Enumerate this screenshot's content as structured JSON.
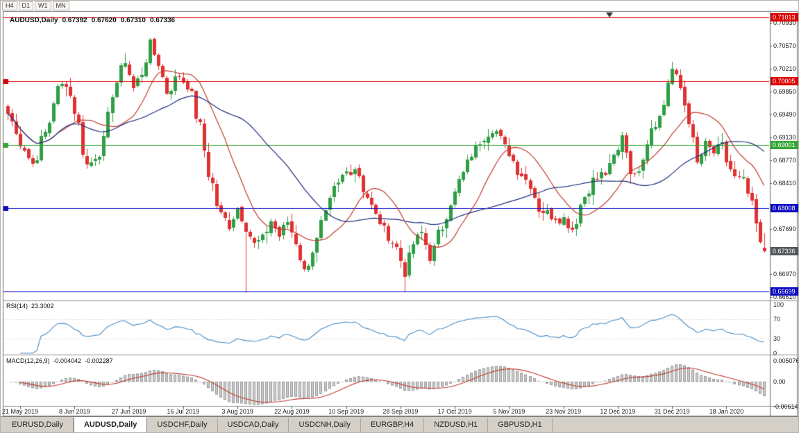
{
  "toolbar": {
    "timeframes": [
      "H4",
      "D1",
      "W1",
      "MN"
    ]
  },
  "chart": {
    "title": "AUDUSD,Daily",
    "ohlc": {
      "open": "0.67392",
      "high": "0.67620",
      "low": "0.67310",
      "close": "0.67336"
    },
    "price_axis": {
      "ticks": [
        "0.70930",
        "0.70570",
        "0.70210",
        "0.69850",
        "0.69490",
        "0.69130",
        "0.68770",
        "0.68410",
        "0.67690",
        "0.66970",
        "0.66610"
      ],
      "top_price": 0.7108,
      "bottom_price": 0.6656
    },
    "hlines": [
      {
        "price": 0.71013,
        "label": "0.71013",
        "color": "#dd0000",
        "handle": false
      },
      {
        "price": 0.70005,
        "label": "0.70005",
        "color": "#dd0000",
        "handle": true
      },
      {
        "price": 0.69001,
        "label": "0.69001",
        "color": "#35a635",
        "handle": true
      },
      {
        "price": 0.68008,
        "label": "0.68008",
        "color": "#0a0ac0",
        "handle": true
      },
      {
        "price": 0.66699,
        "label": "0.66699",
        "color": "#0a0ac0",
        "handle": false
      }
    ],
    "current_price": {
      "label": "0.67336",
      "value": 0.67336,
      "box_color": "#53565c"
    }
  },
  "chart_data": {
    "type": "candlestick",
    "symbol": "AUDUSD",
    "timeframe": "Daily",
    "candles_count": 182,
    "up_color": "#2f9e44",
    "down_color": "#e03131",
    "x_labels": [
      {
        "index": 3,
        "label": "21 May 2019"
      },
      {
        "index": 16,
        "label": "8 Jun 2019"
      },
      {
        "index": 29,
        "label": "27 Jun 2019"
      },
      {
        "index": 42,
        "label": "16 Jul 2019"
      },
      {
        "index": 55,
        "label": "3 Aug 2019"
      },
      {
        "index": 68,
        "label": "22 Aug 2019"
      },
      {
        "index": 81,
        "label": "10 Sep 2019"
      },
      {
        "index": 94,
        "label": "28 Sep 2019"
      },
      {
        "index": 107,
        "label": "17 Oct 2019"
      },
      {
        "index": 120,
        "label": "5 Nov 2019"
      },
      {
        "index": 133,
        "label": "23 Nov 2019"
      },
      {
        "index": 146,
        "label": "12 Dec 2019"
      },
      {
        "index": 159,
        "label": "31 Dec 2019"
      },
      {
        "index": 172,
        "label": "18 Jan 2020"
      }
    ],
    "close_path_anchors": [
      [
        0,
        0.695
      ],
      [
        3,
        0.6905
      ],
      [
        6,
        0.6872
      ],
      [
        9,
        0.692
      ],
      [
        12,
        0.6988
      ],
      [
        14,
        0.7
      ],
      [
        16,
        0.6955
      ],
      [
        19,
        0.6868
      ],
      [
        22,
        0.689
      ],
      [
        26,
        0.7
      ],
      [
        28,
        0.7035
      ],
      [
        30,
        0.699
      ],
      [
        32,
        0.7015
      ],
      [
        34,
        0.7058
      ],
      [
        36,
        0.703
      ],
      [
        38,
        0.6985
      ],
      [
        41,
        0.701
      ],
      [
        43,
        0.6995
      ],
      [
        46,
        0.693
      ],
      [
        48,
        0.6855
      ],
      [
        51,
        0.679
      ],
      [
        53,
        0.6775
      ],
      [
        55,
        0.6802
      ],
      [
        57,
        0.6772
      ],
      [
        59,
        0.6744
      ],
      [
        61,
        0.6752
      ],
      [
        63,
        0.6782
      ],
      [
        65,
        0.6757
      ],
      [
        67,
        0.678
      ],
      [
        69,
        0.6748
      ],
      [
        71,
        0.67
      ],
      [
        73,
        0.6735
      ],
      [
        76,
        0.679
      ],
      [
        78,
        0.683
      ],
      [
        81,
        0.6858
      ],
      [
        83,
        0.6866
      ],
      [
        86,
        0.682
      ],
      [
        88,
        0.6788
      ],
      [
        91,
        0.6758
      ],
      [
        93,
        0.6738
      ],
      [
        95,
        0.67
      ],
      [
        97,
        0.6745
      ],
      [
        99,
        0.6762
      ],
      [
        101,
        0.6725
      ],
      [
        104,
        0.6772
      ],
      [
        106,
        0.6812
      ],
      [
        109,
        0.6855
      ],
      [
        111,
        0.6887
      ],
      [
        114,
        0.6915
      ],
      [
        116,
        0.6928
      ],
      [
        120,
        0.689
      ],
      [
        122,
        0.6862
      ],
      [
        125,
        0.684
      ],
      [
        127,
        0.68
      ],
      [
        130,
        0.679
      ],
      [
        133,
        0.6785
      ],
      [
        135,
        0.677
      ],
      [
        138,
        0.682
      ],
      [
        140,
        0.6845
      ],
      [
        143,
        0.6856
      ],
      [
        146,
        0.689
      ],
      [
        147,
        0.692
      ],
      [
        149,
        0.6862
      ],
      [
        150,
        0.6848
      ],
      [
        152,
        0.6885
      ],
      [
        154,
        0.693
      ],
      [
        156,
        0.6945
      ],
      [
        159,
        0.702
      ],
      [
        161,
        0.699
      ],
      [
        163,
        0.694
      ],
      [
        165,
        0.687
      ],
      [
        167,
        0.69
      ],
      [
        169,
        0.6888
      ],
      [
        171,
        0.6898
      ],
      [
        172,
        0.6875
      ],
      [
        174,
        0.6848
      ],
      [
        176,
        0.6843
      ],
      [
        178,
        0.6805
      ],
      [
        179,
        0.6775
      ],
      [
        180,
        0.6742
      ],
      [
        181,
        0.67336
      ]
    ],
    "wick_overrides": [
      {
        "index": 28,
        "high": 0.7045
      },
      {
        "index": 34,
        "high": 0.7069
      },
      {
        "index": 57,
        "low": 0.6668
      },
      {
        "index": 95,
        "low": 0.66705
      },
      {
        "index": 159,
        "high": 0.7032
      }
    ],
    "last_candle": {
      "open": 0.67392,
      "high": 0.6762,
      "low": 0.6731,
      "close": 0.67336
    },
    "noise_seed": 7,
    "noise_amplitude": 0.0018,
    "overlays": [
      {
        "name": "ma-fast",
        "type": "sma",
        "period": 13,
        "color": "#c03a2b"
      },
      {
        "name": "ma-slow",
        "type": "sma",
        "period": 34,
        "color": "#1d2b7d"
      }
    ]
  },
  "rsi": {
    "name": "RSI(14)",
    "value_text": "23.3002",
    "period": 14,
    "levels": [
      "100",
      "70",
      "30",
      "0"
    ],
    "line_color": "#4a8bc2"
  },
  "macd": {
    "name": "MACD(12,26,9)",
    "main_text": "-0.004042",
    "signal_text": "-0.002287",
    "main_value": -0.004042,
    "signal_value": -0.002287,
    "scale_labels": [
      "0.005076",
      "0.00",
      "-0.006148"
    ],
    "histogram_color": "#cccccc",
    "histogram_border": "#979797",
    "signal_color": "#c03a2b"
  },
  "tabs": {
    "items": [
      {
        "label": "EURUSD,Daily",
        "active": false
      },
      {
        "label": "AUDUSD,Daily",
        "active": true
      },
      {
        "label": "USDCHF,Daily",
        "active": false
      },
      {
        "label": "USDCAD,Daily",
        "active": false
      },
      {
        "label": "USDCNH,Daily",
        "active": false
      },
      {
        "label": "EURGBP,H4",
        "active": false
      },
      {
        "label": "NZDUSD,H1",
        "active": false
      },
      {
        "label": "GBPUSD,H1",
        "active": false
      }
    ]
  }
}
